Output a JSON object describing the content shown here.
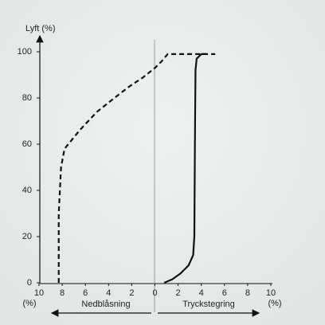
{
  "chart_data": {
    "type": "line",
    "y_label": "Lyft (%)",
    "x_labels": [
      "Nedblåsning",
      "Tryckstegring"
    ],
    "x_units": [
      "(%)",
      "(%)"
    ],
    "xlim": [
      -10,
      10
    ],
    "ylim": [
      0,
      100
    ],
    "xticks": [
      {
        "value": -10,
        "label": "10"
      },
      {
        "value": -8,
        "label": "8"
      },
      {
        "value": -6,
        "label": "6"
      },
      {
        "value": -4,
        "label": "4"
      },
      {
        "value": -2,
        "label": "2"
      },
      0,
      2,
      4,
      6,
      8,
      10
    ],
    "yticks": [
      0,
      20,
      40,
      60,
      80,
      100
    ],
    "series": [
      {
        "color": "#111111",
        "dash": true,
        "x": [
          -8.3,
          -8.3,
          -8.1,
          -7.8,
          -6.5,
          -5.0,
          -3.5,
          -2.2,
          -1.0,
          0,
          0.6,
          1.1,
          3.0,
          5.2
        ],
        "values": [
          0,
          30,
          50,
          58,
          66,
          74,
          80,
          85,
          89,
          93,
          96,
          99,
          99,
          99
        ]
      },
      {
        "color": "#111111",
        "dash": false,
        "x": [
          0.8,
          1.5,
          2.2,
          2.9,
          3.3,
          3.4,
          3.45,
          3.5,
          3.6,
          4.0,
          4.4
        ],
        "values": [
          0,
          1.5,
          4,
          7.5,
          12,
          20,
          60,
          92,
          97,
          99,
          99
        ]
      }
    ]
  }
}
